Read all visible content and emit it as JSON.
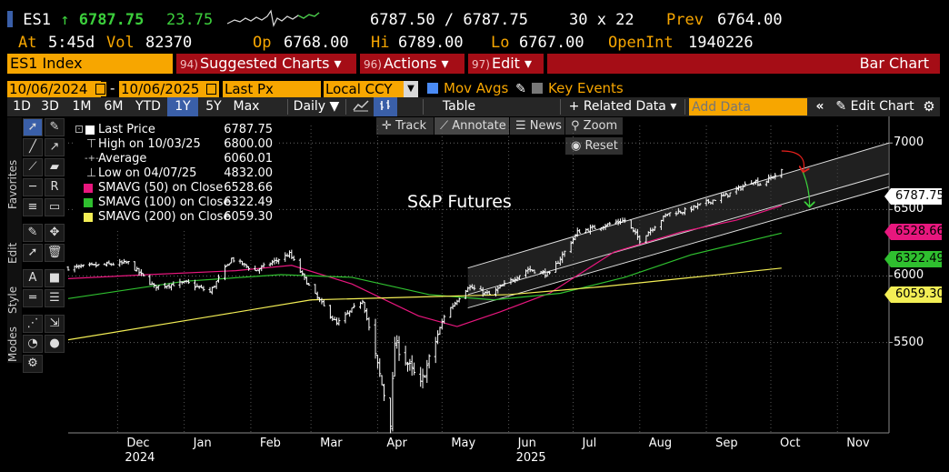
{
  "header": {
    "ticker": "ES1",
    "arrow": "↑",
    "last": "6787.75",
    "change": "23.75",
    "bid_ask": "6787.50 / 6787.75",
    "size": "30 x 22",
    "prev_label": "Prev",
    "prev": "6764.00",
    "at_label": "At",
    "at": "5:45d",
    "vol_label": "Vol",
    "vol": "82370",
    "open_label": "Op",
    "open": "6768.00",
    "high_label": "Hi",
    "high": "6789.00",
    "low_label": "Lo",
    "low": "6767.00",
    "openint_label": "OpenInt",
    "openint": "1940226"
  },
  "menu": {
    "security": "ES1 Index",
    "suggested_num": "94)",
    "suggested": "Suggested Charts ▾",
    "actions_num": "96)",
    "actions": "Actions ▾",
    "edit_num": "97)",
    "edit": "Edit ▾",
    "view_title": "Bar Chart"
  },
  "controls": {
    "start_date": "10/06/2024",
    "dash": "-",
    "end_date": "10/06/2025",
    "field": "Last Px",
    "currency": "Local CCY",
    "mov_avgs": "Mov Avgs",
    "key_events": "Key Events"
  },
  "tabs": {
    "periods": [
      "1D",
      "3D",
      "1M",
      "6M",
      "YTD",
      "1Y",
      "5Y",
      "Max"
    ],
    "selected": "1Y",
    "frequency": "Daily ▼",
    "table": "Table",
    "related_data": "+ Related Data ▾",
    "add_data_placeholder": "Add Data",
    "edit_chart": "Edit Chart"
  },
  "chart_tools": {
    "track": "Track",
    "annotate": "Annotate",
    "news": "News",
    "zoom": "Zoom",
    "reset": "Reset"
  },
  "left_labels": {
    "favorites": "Favorites",
    "edit": "Edit",
    "style": "Style",
    "modes": "Modes"
  },
  "legend": {
    "last_price_label": "Last Price",
    "last_price": "6787.75",
    "high_label": "High on 10/03/25",
    "high": "6800.00",
    "average_label": "Average",
    "average": "6060.01",
    "low_label": "Low on 04/07/25",
    "low": "4832.00",
    "sma50_label": "SMAVG (50)  on Close",
    "sma50": "6528.66",
    "sma100_label": "SMAVG (100)  on Close",
    "sma100": "6322.49",
    "sma200_label": "SMAVG (200)  on Close",
    "sma200": "6059.30"
  },
  "colors": {
    "amber": "#f7a600",
    "menu_red": "#a50d16",
    "sma50": "#e8177e",
    "sma100": "#2fbf2f",
    "sma200": "#f3ee55",
    "selected_tab": "#3a5fa8"
  },
  "chart_data": {
    "type": "bar",
    "title": "S&P Futures",
    "y_axis_position": "right",
    "y_ticks": [
      5500,
      6000,
      6500,
      7000
    ],
    "y_tick_labels": [
      "5500",
      "6000",
      "6500",
      "7000"
    ],
    "ylim": [
      4820,
      7200
    ],
    "x_labels": [
      {
        "month": "Dec",
        "year": "2024",
        "date": "2024-12-01"
      },
      {
        "month": "Jan",
        "year": "",
        "date": "2025-01-01"
      },
      {
        "month": "Feb",
        "year": "",
        "date": "2025-02-01"
      },
      {
        "month": "Mar",
        "year": "",
        "date": "2025-03-01"
      },
      {
        "month": "Apr",
        "year": "",
        "date": "2025-04-01"
      },
      {
        "month": "May",
        "year": "",
        "date": "2025-05-01"
      },
      {
        "month": "Jun",
        "year": "2025",
        "date": "2025-06-01"
      },
      {
        "month": "Jul",
        "year": "",
        "date": "2025-07-01"
      },
      {
        "month": "Aug",
        "year": "",
        "date": "2025-08-01"
      },
      {
        "month": "Sep",
        "year": "",
        "date": "2025-09-01"
      },
      {
        "month": "Oct",
        "year": "",
        "date": "2025-10-01"
      },
      {
        "month": "Nov",
        "year": "",
        "date": "2025-11-01"
      }
    ],
    "x_range": [
      "2024-11-08",
      "2025-11-25"
    ],
    "grid": true,
    "price_anchors": [
      {
        "date": "2024-11-08",
        "value": 6060
      },
      {
        "date": "2024-12-06",
        "value": 6100
      },
      {
        "date": "2024-12-18",
        "value": 5920
      },
      {
        "date": "2025-01-02",
        "value": 5950
      },
      {
        "date": "2025-01-13",
        "value": 5880
      },
      {
        "date": "2025-01-23",
        "value": 6130
      },
      {
        "date": "2025-02-03",
        "value": 6040
      },
      {
        "date": "2025-02-19",
        "value": 6165
      },
      {
        "date": "2025-03-01",
        "value": 5900
      },
      {
        "date": "2025-03-13",
        "value": 5640
      },
      {
        "date": "2025-03-25",
        "value": 5820
      },
      {
        "date": "2025-04-07",
        "value": 4900
      },
      {
        "date": "2025-04-09",
        "value": 5500
      },
      {
        "date": "2025-04-21",
        "value": 5180
      },
      {
        "date": "2025-05-02",
        "value": 5700
      },
      {
        "date": "2025-05-13",
        "value": 5920
      },
      {
        "date": "2025-05-23",
        "value": 5860
      },
      {
        "date": "2025-06-10",
        "value": 6050
      },
      {
        "date": "2025-06-20",
        "value": 6010
      },
      {
        "date": "2025-07-03",
        "value": 6330
      },
      {
        "date": "2025-07-25",
        "value": 6420
      },
      {
        "date": "2025-08-01",
        "value": 6270
      },
      {
        "date": "2025-08-14",
        "value": 6470
      },
      {
        "date": "2025-08-22",
        "value": 6490
      },
      {
        "date": "2025-09-12",
        "value": 6620
      },
      {
        "date": "2025-09-23",
        "value": 6720
      },
      {
        "date": "2025-09-26",
        "value": 6690
      },
      {
        "date": "2025-10-06",
        "value": 6787.75
      }
    ],
    "series": [
      {
        "name": "SMAVG (50)  on Close",
        "points": [
          {
            "date": "2024-11-08",
            "value": 5980
          },
          {
            "date": "2024-12-15",
            "value": 6010
          },
          {
            "date": "2025-01-25",
            "value": 6040
          },
          {
            "date": "2025-02-20",
            "value": 6080
          },
          {
            "date": "2025-03-20",
            "value": 5940
          },
          {
            "date": "2025-04-20",
            "value": 5700
          },
          {
            "date": "2025-05-08",
            "value": 5620
          },
          {
            "date": "2025-05-28",
            "value": 5730
          },
          {
            "date": "2025-06-20",
            "value": 5870
          },
          {
            "date": "2025-07-20",
            "value": 6180
          },
          {
            "date": "2025-08-20",
            "value": 6330
          },
          {
            "date": "2025-09-15",
            "value": 6420
          },
          {
            "date": "2025-10-06",
            "value": 6528.66
          }
        ]
      },
      {
        "name": "SMAVG (100)  on Close",
        "points": [
          {
            "date": "2024-11-08",
            "value": 5830
          },
          {
            "date": "2025-01-01",
            "value": 5960
          },
          {
            "date": "2025-02-15",
            "value": 6010
          },
          {
            "date": "2025-03-20",
            "value": 5990
          },
          {
            "date": "2025-04-25",
            "value": 5860
          },
          {
            "date": "2025-05-25",
            "value": 5820
          },
          {
            "date": "2025-06-25",
            "value": 5870
          },
          {
            "date": "2025-07-25",
            "value": 5990
          },
          {
            "date": "2025-08-25",
            "value": 6160
          },
          {
            "date": "2025-10-06",
            "value": 6322.49
          }
        ]
      },
      {
        "name": "SMAVG (200)  on Close",
        "points": [
          {
            "date": "2024-11-08",
            "value": 5520
          },
          {
            "date": "2025-01-15",
            "value": 5700
          },
          {
            "date": "2025-03-01",
            "value": 5820
          },
          {
            "date": "2025-04-15",
            "value": 5840
          },
          {
            "date": "2025-06-01",
            "value": 5860
          },
          {
            "date": "2025-07-15",
            "value": 5920
          },
          {
            "date": "2025-09-01",
            "value": 6000
          },
          {
            "date": "2025-10-06",
            "value": 6059.3
          }
        ]
      }
    ],
    "channel": {
      "upper": [
        {
          "date": "2025-05-13",
          "value": 6060
        },
        {
          "date": "2025-11-25",
          "value": 7000
        }
      ],
      "lower": [
        {
          "date": "2025-05-13",
          "value": 5860
        },
        {
          "date": "2025-11-25",
          "value": 6770
        }
      ],
      "lower_front": [
        {
          "date": "2025-05-13",
          "value": 5760
        },
        {
          "date": "2025-11-25",
          "value": 6670
        }
      ]
    },
    "annotations": [
      {
        "type": "arrow",
        "color": "#e8201c",
        "from": {
          "date": "2025-10-06",
          "value": 6940
        },
        "to": {
          "date": "2025-10-16",
          "value": 6780
        }
      },
      {
        "type": "arrow",
        "color": "#3ccf3c",
        "from": {
          "date": "2025-10-16",
          "value": 6780
        },
        "to": {
          "date": "2025-10-19",
          "value": 6520
        }
      }
    ],
    "last_value": 6787.75
  }
}
